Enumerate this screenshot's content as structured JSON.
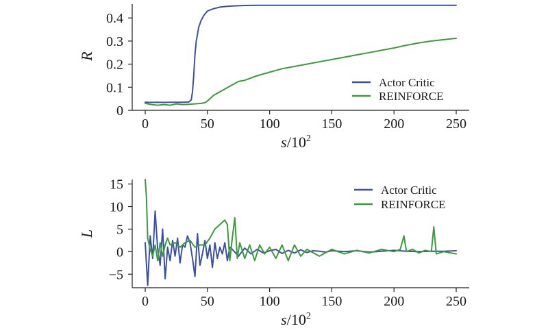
{
  "colors": {
    "actor_critic": "#3b4fa8",
    "reinforce": "#3d9a3a"
  },
  "chart_data": [
    {
      "type": "line",
      "ylabel": "R",
      "xlabel_var": "s",
      "xlabel_unit": "/10",
      "xlabel_exp": "2",
      "xlim": [
        0,
        250
      ],
      "ylim": [
        0,
        0.46
      ],
      "xticks": [
        "0",
        "50",
        "100",
        "150",
        "200",
        "250"
      ],
      "xtick_values": [
        0,
        50,
        100,
        150,
        200,
        250
      ],
      "yticks": [
        "0",
        "0.1",
        "0.2",
        "0.3",
        "0.4"
      ],
      "ytick_values": [
        0,
        0.1,
        0.2,
        0.3,
        0.4
      ],
      "legend": [
        "Actor Critic",
        "REINFORCE"
      ],
      "legend_position": "bottom-right",
      "series": [
        {
          "name": "Actor Critic",
          "color_key": "actor_critic",
          "x": [
            0,
            5,
            10,
            15,
            20,
            25,
            30,
            35,
            37,
            38,
            39,
            40,
            41,
            42,
            43,
            45,
            47,
            50,
            55,
            60,
            65,
            70,
            80,
            90,
            100,
            125,
            150,
            175,
            200,
            225,
            250
          ],
          "y": [
            0.035,
            0.034,
            0.035,
            0.034,
            0.035,
            0.035,
            0.035,
            0.036,
            0.045,
            0.08,
            0.15,
            0.24,
            0.3,
            0.33,
            0.36,
            0.39,
            0.41,
            0.43,
            0.44,
            0.447,
            0.45,
            0.452,
            0.454,
            0.455,
            0.455,
            0.455,
            0.455,
            0.455,
            0.455,
            0.455,
            0.455
          ]
        },
        {
          "name": "REINFORCE",
          "color_key": "reinforce",
          "x": [
            0,
            5,
            10,
            15,
            20,
            25,
            30,
            35,
            40,
            45,
            48,
            50,
            53,
            55,
            60,
            65,
            70,
            75,
            80,
            85,
            90,
            100,
            110,
            120,
            130,
            140,
            150,
            160,
            170,
            180,
            190,
            200,
            210,
            220,
            230,
            240,
            250
          ],
          "y": [
            0.03,
            0.025,
            0.022,
            0.025,
            0.022,
            0.028,
            0.025,
            0.026,
            0.028,
            0.03,
            0.033,
            0.04,
            0.055,
            0.065,
            0.08,
            0.095,
            0.11,
            0.125,
            0.13,
            0.14,
            0.15,
            0.165,
            0.18,
            0.19,
            0.2,
            0.21,
            0.22,
            0.23,
            0.24,
            0.25,
            0.26,
            0.27,
            0.282,
            0.292,
            0.3,
            0.306,
            0.312
          ]
        }
      ]
    },
    {
      "type": "line",
      "ylabel": "L",
      "xlabel_var": "s",
      "xlabel_unit": "/10",
      "xlabel_exp": "2",
      "xlim": [
        0,
        250
      ],
      "ylim": [
        -8,
        16
      ],
      "xticks": [
        "0",
        "50",
        "100",
        "150",
        "200",
        "250"
      ],
      "xtick_values": [
        0,
        50,
        100,
        150,
        200,
        250
      ],
      "yticks": [
        "−5",
        "0",
        "5",
        "10",
        "15"
      ],
      "ytick_values": [
        -5,
        0,
        5,
        10,
        15
      ],
      "legend": [
        "Actor Critic",
        "REINFORCE"
      ],
      "legend_position": "top-right",
      "series": [
        {
          "name": "Actor Critic",
          "color_key": "actor_critic",
          "x": [
            0,
            2,
            4,
            6,
            8,
            10,
            12,
            14,
            16,
            18,
            20,
            22,
            24,
            26,
            28,
            30,
            32,
            34,
            36,
            38,
            40,
            42,
            44,
            46,
            48,
            50,
            52,
            54,
            56,
            58,
            60,
            62,
            64,
            66,
            68,
            70,
            75,
            80,
            85,
            90,
            95,
            100,
            105,
            110,
            115,
            120,
            125,
            130,
            135,
            140,
            145,
            150,
            160,
            170,
            180,
            190,
            200,
            210,
            220,
            230,
            240,
            250
          ],
          "y": [
            2,
            -7.5,
            3.5,
            -1.5,
            9,
            0.5,
            -3,
            5,
            -6,
            1,
            -2,
            2.5,
            -1,
            3,
            -2.5,
            1.5,
            1,
            3.5,
            2,
            -1.5,
            -5.5,
            4,
            -3,
            -0.5,
            2.5,
            -1.5,
            1.5,
            -3.5,
            2,
            -1.5,
            1,
            -0.5,
            2,
            -2,
            1,
            0.5,
            -1,
            0.8,
            -0.5,
            0.5,
            -0.3,
            0.2,
            0.5,
            -0.4,
            0.3,
            -0.3,
            0.4,
            -0.2,
            0.2,
            0.1,
            -0.1,
            0.2,
            0,
            0.2,
            -0.1,
            0.1,
            0.3,
            0.1,
            0,
            0.1,
            0.1,
            0.2
          ]
        },
        {
          "name": "REINFORCE",
          "color_key": "reinforce",
          "x": [
            0,
            1,
            2,
            4,
            6,
            8,
            10,
            12,
            14,
            16,
            18,
            20,
            24,
            28,
            32,
            36,
            40,
            44,
            48,
            52,
            56,
            60,
            64,
            66,
            68,
            70,
            72,
            74,
            76,
            80,
            84,
            88,
            92,
            96,
            100,
            105,
            110,
            115,
            120,
            125,
            130,
            140,
            150,
            160,
            170,
            180,
            190,
            200,
            205,
            208,
            210,
            215,
            220,
            225,
            230,
            232,
            234,
            240,
            250
          ],
          "y": [
            16,
            12,
            3,
            0.5,
            -1,
            1.5,
            -2,
            2,
            -1,
            1.5,
            3,
            1.5,
            2,
            1,
            2,
            2.5,
            1,
            1.5,
            1.5,
            3,
            5,
            6,
            7,
            6,
            -2,
            3,
            7.5,
            -1.5,
            2,
            -1.5,
            1.5,
            -2,
            1.5,
            -0.5,
            1,
            -1.5,
            1.5,
            -2,
            1.5,
            -1,
            0.5,
            -1,
            0.5,
            -0.5,
            0.3,
            -0.3,
            0.5,
            0,
            0.5,
            3.5,
            0,
            0.5,
            -0.3,
            0.3,
            0,
            5.5,
            -0.5,
            0,
            -0.5
          ]
        }
      ]
    }
  ]
}
